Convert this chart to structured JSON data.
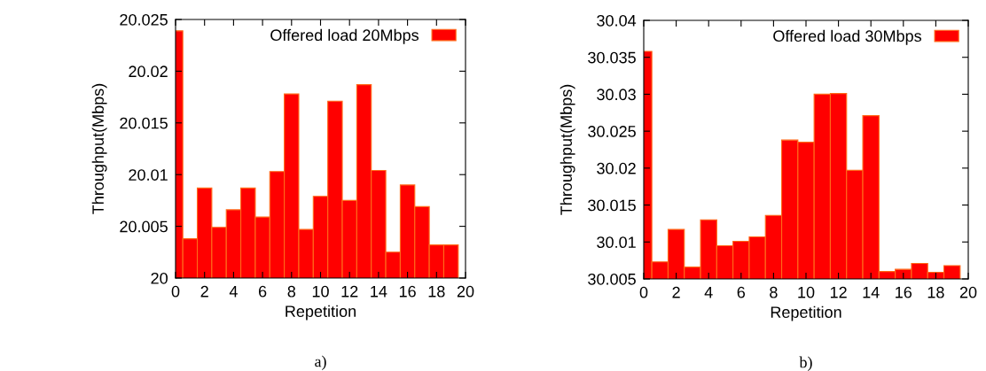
{
  "chart_data": [
    {
      "type": "bar",
      "xlabel": "Repetition",
      "ylabel": "Throughput(Mbps)",
      "annotations": [
        "a)"
      ],
      "x": [
        0,
        1,
        2,
        3,
        4,
        5,
        6,
        7,
        8,
        9,
        10,
        11,
        12,
        13,
        14,
        15,
        16,
        17,
        18,
        19
      ],
      "series": [
        {
          "name": "Offered load 20Mbps",
          "color": "#ff0000",
          "values": [
            20.0239,
            20.0038,
            20.0087,
            20.0049,
            20.0066,
            20.0087,
            20.0059,
            20.0103,
            20.0178,
            20.0047,
            20.0079,
            20.0171,
            20.0075,
            20.0187,
            20.0104,
            20.0025,
            20.009,
            20.0069,
            20.0032,
            20.0032
          ]
        }
      ],
      "xlim": [
        0,
        20
      ],
      "xticks": [
        0,
        2,
        4,
        6,
        8,
        10,
        12,
        14,
        16,
        18,
        20
      ],
      "ylim": [
        20,
        20.025
      ],
      "yticks": [
        20,
        20.005,
        20.01,
        20.015,
        20.02,
        20.025
      ],
      "legend": "top right",
      "grid": false
    },
    {
      "type": "bar",
      "xlabel": "Repetition",
      "ylabel": "Throughput(Mbps)",
      "annotations": [
        "b)"
      ],
      "x": [
        0,
        1,
        2,
        3,
        4,
        5,
        6,
        7,
        8,
        9,
        10,
        11,
        12,
        13,
        14,
        15,
        16,
        17,
        18,
        19
      ],
      "series": [
        {
          "name": "Offered load 30Mbps",
          "color": "#ff0000",
          "values": [
            30.0358,
            30.0073,
            30.0117,
            30.0066,
            30.013,
            30.0095,
            30.0101,
            30.0107,
            30.0136,
            30.0238,
            30.0235,
            30.03,
            30.0301,
            30.0197,
            30.0271,
            30.006,
            30.0063,
            30.0071,
            30.0059,
            30.0068
          ]
        }
      ],
      "xlim": [
        0,
        20
      ],
      "xticks": [
        0,
        2,
        4,
        6,
        8,
        10,
        12,
        14,
        16,
        18,
        20
      ],
      "ylim": [
        30.005,
        30.04
      ],
      "yticks": [
        30.005,
        30.01,
        30.015,
        30.02,
        30.025,
        30.03,
        30.035,
        30.04
      ],
      "legend": "top right",
      "grid": false
    }
  ]
}
